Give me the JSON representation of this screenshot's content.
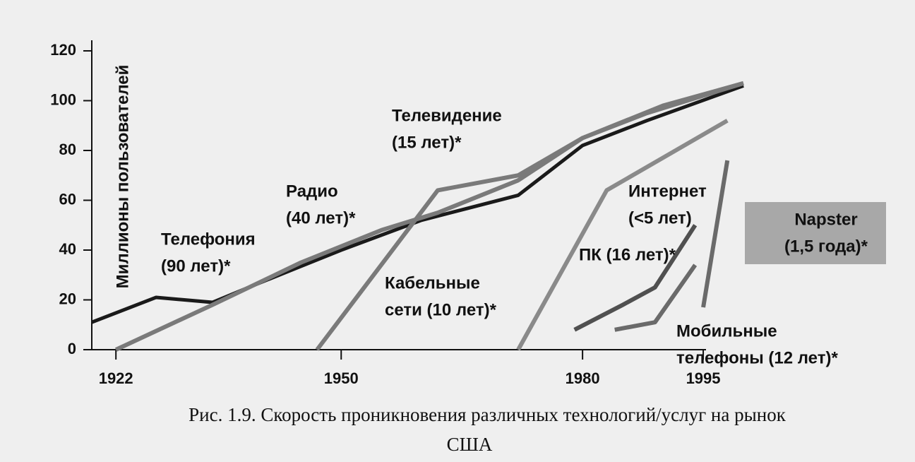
{
  "chart_data": {
    "type": "line",
    "y_label": "Миллионы пользователей",
    "ylim": [
      0,
      120
    ],
    "yticks": [
      0,
      20,
      40,
      60,
      80,
      100,
      120
    ],
    "xlim": [
      1919,
      2005
    ],
    "xticks": [
      1922,
      1950,
      1980,
      1995
    ],
    "grid": false,
    "series": [
      {
        "label": [
          "Телефония",
          "(90 лет)*"
        ],
        "color": "#1a1a1a",
        "x": [
          1919,
          1927,
          1934,
          1940,
          1950,
          1960,
          1966,
          1972,
          1980,
          1988,
          2000
        ],
        "values": [
          11,
          21,
          19,
          27,
          40,
          52,
          57,
          62,
          82,
          92,
          106
        ]
      },
      {
        "label": [
          "Радио",
          "(40 лет)*"
        ],
        "color": "#7a7a7a",
        "x": [
          1922,
          1934,
          1945,
          1955,
          1962,
          1972,
          1980,
          1990,
          2000
        ],
        "values": [
          0,
          18,
          35,
          48,
          55,
          68,
          85,
          98,
          107
        ]
      },
      {
        "label": [
          "Телевидение",
          "(15 лет)*"
        ],
        "color": "#7a7a7a",
        "x": [
          1947,
          1962,
          1972,
          1980,
          1988,
          2000
        ],
        "values": [
          0,
          64,
          70,
          85,
          95,
          107
        ]
      },
      {
        "label": [
          "Кабельные",
          "сети (10 лет)*"
        ],
        "color": "#8a8a8a",
        "x": [
          1972,
          1983,
          1998
        ],
        "values": [
          0,
          64,
          92
        ]
      },
      {
        "label": [
          "ПК (16 лет)*"
        ],
        "color": "#505050",
        "x": [
          1979,
          1985,
          1989,
          1994
        ],
        "values": [
          8,
          18,
          25,
          50
        ]
      },
      {
        "label": [
          "Интернет",
          "(<5 лет)"
        ],
        "color": "#6a6a6a",
        "x": [
          1984,
          1989,
          1994
        ],
        "values": [
          8,
          11,
          34
        ]
      },
      {
        "label": [
          "Мобильные",
          "телефоны (12 лет)*"
        ],
        "color": "#6a6a6a",
        "x": [
          1995,
          1998
        ],
        "values": [
          17,
          76
        ]
      }
    ],
    "annotation": [
      "Napster",
      "(1,5 года)*"
    ],
    "caption": [
      "Рис. 1.9. Скорость проникновения различных технологий/услуг на рынок",
      "США"
    ]
  }
}
